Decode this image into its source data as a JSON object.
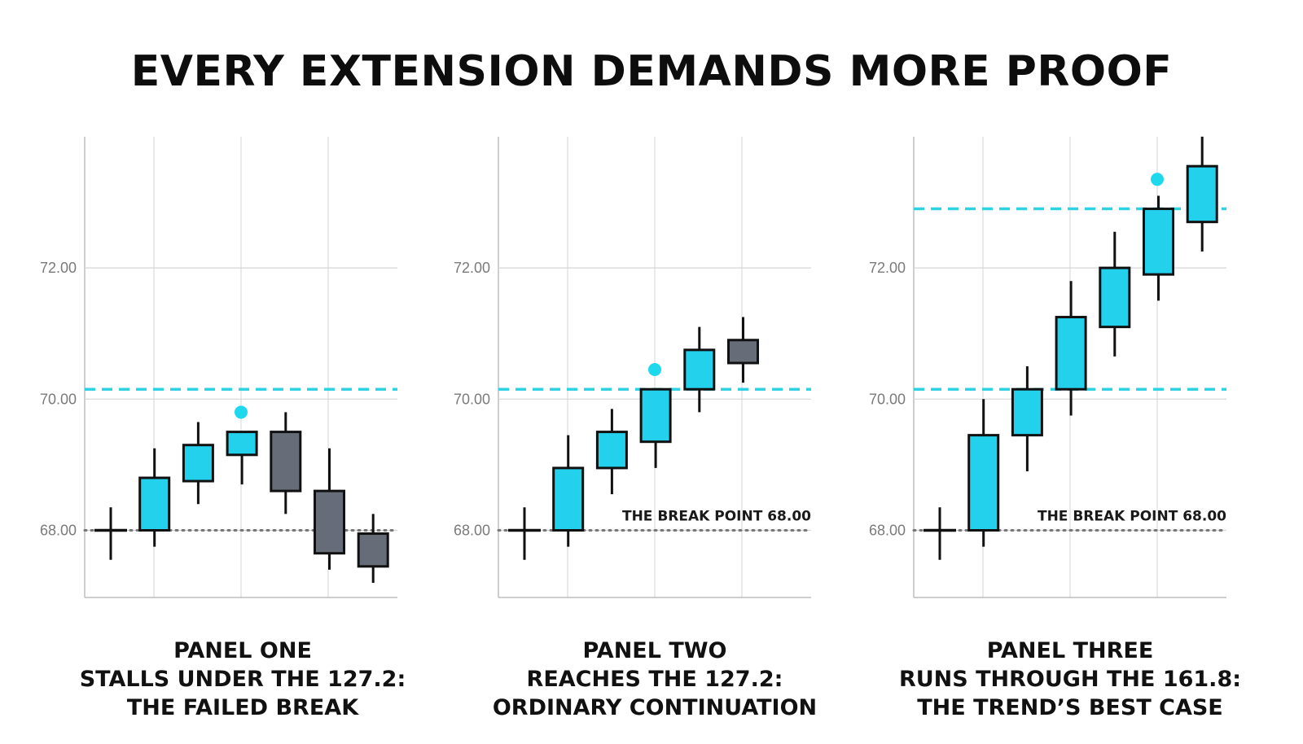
{
  "title": "EVERY EXTENSION DEMANDS MORE PROOF",
  "colors": {
    "bull": "#24d1ec",
    "bear": "#666d78",
    "level": "#2ed2e3",
    "marker": "#1ed9ee",
    "outline": "#111111"
  },
  "chart_data": [
    {
      "type": "candlestick",
      "ylim": [
        67.0,
        74.0
      ],
      "yticks": [
        "68.00",
        "70.00",
        "72.00"
      ],
      "break_point": 68.0,
      "break_label": "",
      "level_lines": [
        70.15
      ],
      "marker": {
        "index": 4,
        "value": 69.8
      },
      "candles": [
        {
          "type": "doji",
          "open": 68.0,
          "close": 68.0,
          "high": 68.35,
          "low": 67.55
        },
        {
          "type": "bull",
          "open": 68.0,
          "close": 68.8,
          "high": 69.25,
          "low": 67.75
        },
        {
          "type": "bull",
          "open": 68.75,
          "close": 69.3,
          "high": 69.65,
          "low": 68.4
        },
        {
          "type": "bull",
          "open": 69.15,
          "close": 69.5,
          "high": 69.5,
          "low": 68.7
        },
        {
          "type": "bear",
          "open": 69.5,
          "close": 68.6,
          "high": 69.8,
          "low": 68.25
        },
        {
          "type": "bear",
          "open": 68.6,
          "close": 67.65,
          "high": 69.25,
          "low": 67.4
        },
        {
          "type": "bear",
          "open": 67.95,
          "close": 67.45,
          "high": 68.25,
          "low": 67.2
        }
      ],
      "caption": [
        "PANEL ONE",
        "STALLS UNDER THE 127.2:",
        "THE FAILED BREAK"
      ]
    },
    {
      "type": "candlestick",
      "ylim": [
        67.0,
        74.0
      ],
      "yticks": [
        "68.00",
        "70.00",
        "72.00"
      ],
      "break_point": 68.0,
      "break_label": "THE BREAK POINT 68.00",
      "level_lines": [
        70.15
      ],
      "marker": {
        "index": 4,
        "value": 70.45
      },
      "candles": [
        {
          "type": "doji",
          "open": 68.0,
          "close": 68.0,
          "high": 68.35,
          "low": 67.55
        },
        {
          "type": "bull",
          "open": 68.0,
          "close": 68.95,
          "high": 69.45,
          "low": 67.75
        },
        {
          "type": "bull",
          "open": 68.95,
          "close": 69.5,
          "high": 69.85,
          "low": 68.55
        },
        {
          "type": "bull",
          "open": 69.35,
          "close": 70.15,
          "high": 70.15,
          "low": 68.95
        },
        {
          "type": "bull",
          "open": 70.15,
          "close": 70.75,
          "high": 71.1,
          "low": 69.8
        },
        {
          "type": "bear",
          "open": 70.9,
          "close": 70.55,
          "high": 71.25,
          "low": 70.25
        }
      ],
      "caption": [
        "PANEL TWO",
        "REACHES THE 127.2:",
        "ORDINARY CONTINUATION"
      ]
    },
    {
      "type": "candlestick",
      "ylim": [
        67.0,
        74.0
      ],
      "yticks": [
        "68.00",
        "70.00",
        "72.00"
      ],
      "break_point": 68.0,
      "break_label": "THE BREAK POINT 68.00",
      "level_lines": [
        70.15,
        72.9
      ],
      "marker": {
        "index": 6,
        "value": 73.35
      },
      "candles": [
        {
          "type": "doji",
          "open": 68.0,
          "close": 68.0,
          "high": 68.35,
          "low": 67.55
        },
        {
          "type": "bull",
          "open": 68.0,
          "close": 69.45,
          "high": 70.0,
          "low": 67.75
        },
        {
          "type": "bull",
          "open": 69.45,
          "close": 70.15,
          "high": 70.5,
          "low": 68.9
        },
        {
          "type": "bull",
          "open": 70.15,
          "close": 71.25,
          "high": 71.8,
          "low": 69.75
        },
        {
          "type": "bull",
          "open": 71.1,
          "close": 72.0,
          "high": 72.55,
          "low": 70.65
        },
        {
          "type": "bull",
          "open": 71.9,
          "close": 72.9,
          "high": 73.1,
          "low": 71.5
        },
        {
          "type": "bull",
          "open": 72.7,
          "close": 73.55,
          "high": 74.0,
          "low": 72.25
        }
      ],
      "caption": [
        "PANEL THREE",
        "RUNS THROUGH THE 161.8:",
        "THE TREND’S BEST CASE"
      ]
    }
  ]
}
